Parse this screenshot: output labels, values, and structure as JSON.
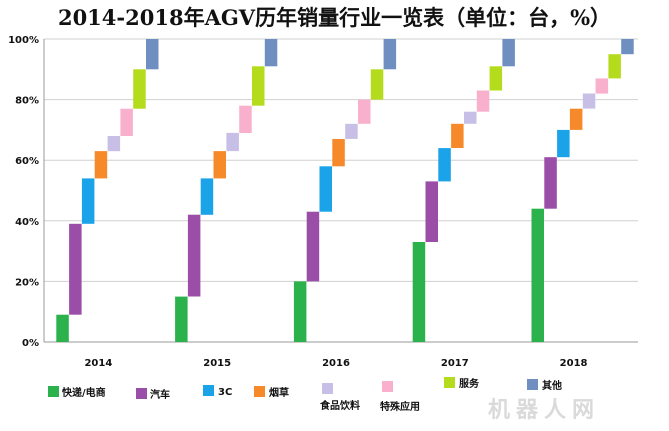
{
  "chart_data": {
    "type": "bar",
    "subtype": "waterfall-stacked",
    "title": "2014-2018年AGV历年销量行业一览表（单位：台，%）",
    "xlabel": "",
    "ylabel": "",
    "ylim": [
      0,
      100
    ],
    "yticks": [
      "0%",
      "20%",
      "40%",
      "60%",
      "80%",
      "100%"
    ],
    "grid": true,
    "legend_position": "bottom",
    "categories": [
      "2014",
      "2015",
      "2016",
      "2017",
      "2018"
    ],
    "series": [
      {
        "name": "快递/电商",
        "color": "#2bb24c",
        "values": [
          9,
          15,
          20,
          33,
          44
        ]
      },
      {
        "name": "汽车",
        "color": "#9b4ea8",
        "values": [
          30,
          27,
          23,
          20,
          17
        ]
      },
      {
        "name": "3C",
        "color": "#1aa3e8",
        "values": [
          15,
          12,
          15,
          11,
          9
        ]
      },
      {
        "name": "烟草",
        "color": "#f68a2a",
        "values": [
          9,
          9,
          9,
          8,
          7
        ]
      },
      {
        "name": "食品饮料",
        "color": "#c7bfe6",
        "values": [
          5,
          6,
          5,
          4,
          5
        ]
      },
      {
        "name": "特殊应用",
        "color": "#f8b0cc",
        "values": [
          9,
          9,
          8,
          7,
          5
        ]
      },
      {
        "name": "服务",
        "color": "#b5dc1c",
        "values": [
          13,
          13,
          10,
          8,
          8
        ]
      },
      {
        "name": "其他",
        "color": "#6f8fc0",
        "values": [
          10,
          9,
          10,
          9,
          5
        ]
      }
    ]
  },
  "watermark": "机器人网"
}
